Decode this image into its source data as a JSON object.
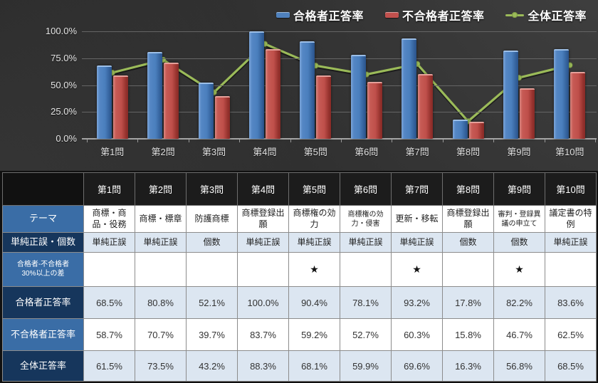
{
  "chart_data": {
    "type": "bar+line",
    "title": "",
    "categories": [
      "第1問",
      "第2問",
      "第3問",
      "第4問",
      "第5問",
      "第6問",
      "第7問",
      "第8問",
      "第9問",
      "第10問"
    ],
    "series": [
      {
        "name": "合格者正答率",
        "type": "bar",
        "color": "#4f81bd",
        "values": [
          68.5,
          80.8,
          52.1,
          100.0,
          90.4,
          78.1,
          93.2,
          17.8,
          82.2,
          83.6
        ]
      },
      {
        "name": "不合格者正答率",
        "type": "bar",
        "color": "#c0504d",
        "values": [
          58.7,
          70.7,
          39.7,
          83.7,
          59.2,
          52.7,
          60.3,
          15.8,
          46.7,
          62.5
        ]
      },
      {
        "name": "全体正答率",
        "type": "line",
        "color": "#9bbb59",
        "values": [
          61.5,
          73.5,
          43.2,
          88.3,
          68.1,
          59.9,
          69.6,
          16.3,
          56.8,
          68.5
        ]
      }
    ],
    "ylim": [
      0,
      100
    ],
    "y_ticks": [
      0,
      25,
      50,
      75,
      100
    ],
    "y_tick_labels": [
      "0.0%",
      "25.0%",
      "50.0%",
      "75.0%",
      "100.0%"
    ],
    "grid": true,
    "legend_position": "top-right",
    "background": "dark"
  },
  "table": {
    "columns": [
      "第1問",
      "第2問",
      "第3問",
      "第4問",
      "第5問",
      "第6問",
      "第7問",
      "第8問",
      "第9問",
      "第10問"
    ],
    "rows": [
      {
        "label": "テーマ",
        "kind": "text",
        "values": [
          "商標・商品・役務",
          "商標・標章",
          "防護商標",
          "商標登録出願",
          "商標権の効力",
          "商標権の効力・侵害",
          "更新・移転",
          "商標登録出願",
          "審判・登録異議の申立て",
          "議定書の特例"
        ]
      },
      {
        "label": "単純正誤・個数",
        "kind": "text",
        "values": [
          "単純正誤",
          "単純正誤",
          "個数",
          "単純正誤",
          "単純正誤",
          "単純正誤",
          "単純正誤",
          "個数",
          "個数",
          "単純正誤"
        ]
      },
      {
        "label": "合格者-不合格者\n30%以上の差",
        "kind": "star",
        "values": [
          "",
          "",
          "",
          "",
          "★",
          "",
          "★",
          "",
          "★",
          ""
        ]
      },
      {
        "label": "合格者正答率",
        "kind": "num",
        "values": [
          "68.5%",
          "80.8%",
          "52.1%",
          "100.0%",
          "90.4%",
          "78.1%",
          "93.2%",
          "17.8%",
          "82.2%",
          "83.6%"
        ]
      },
      {
        "label": "不合格者正答率",
        "kind": "num",
        "values": [
          "58.7%",
          "70.7%",
          "39.7%",
          "83.7%",
          "59.2%",
          "52.7%",
          "60.3%",
          "15.8%",
          "46.7%",
          "62.5%"
        ]
      },
      {
        "label": "全体正答率",
        "kind": "num",
        "values": [
          "61.5%",
          "73.5%",
          "43.2%",
          "88.3%",
          "68.1%",
          "59.9%",
          "69.6%",
          "16.3%",
          "56.8%",
          "68.5%"
        ]
      }
    ]
  },
  "colors": {
    "bar_pass": "#4f81bd",
    "bar_fail": "#c0504d",
    "line_overall": "#9bbb59",
    "line_overall_dark": "#7e9c45",
    "row_label_blue": "#3a6da6",
    "row_label_navy": "#16365c",
    "cell_light_blue": "#dce6f1",
    "header_bg": "#1c1c1c",
    "chart_bg": "#242424"
  }
}
